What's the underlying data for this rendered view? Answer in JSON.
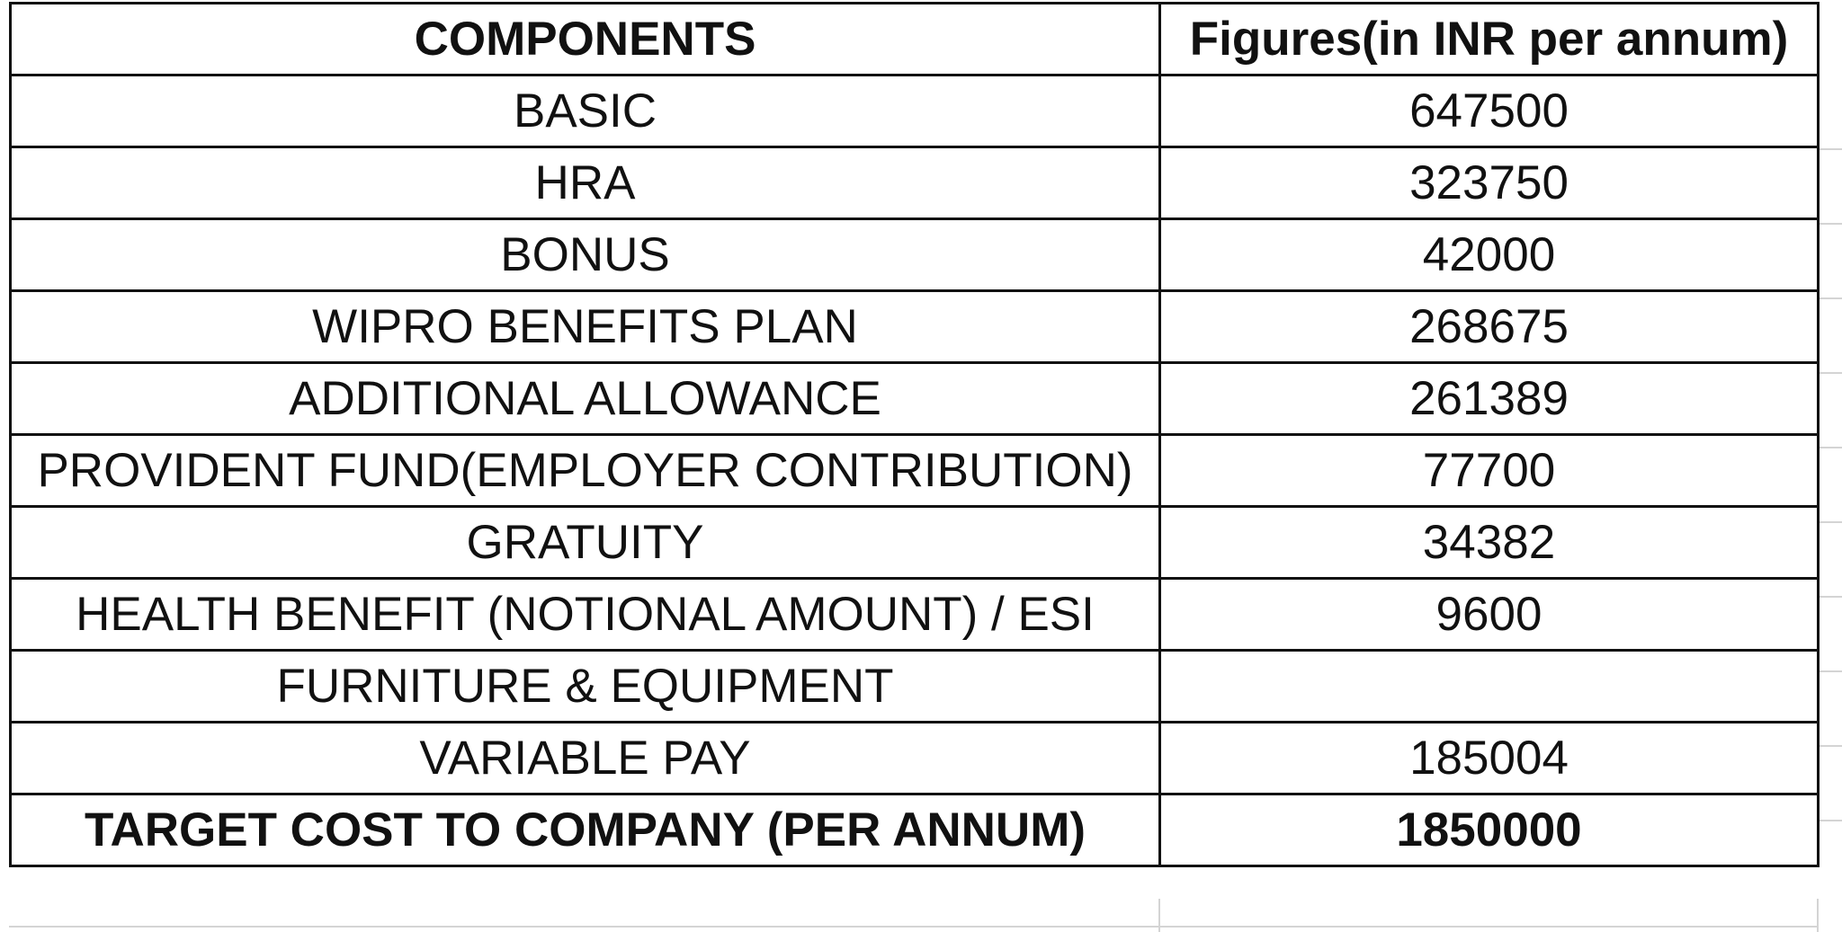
{
  "table": {
    "headers": {
      "components": "COMPONENTS",
      "figures": "Figures(in INR per annum)"
    },
    "rows": [
      {
        "component": "BASIC",
        "figure": "647500"
      },
      {
        "component": "HRA",
        "figure": "323750"
      },
      {
        "component": "BONUS",
        "figure": "42000"
      },
      {
        "component": "WIPRO BENEFITS PLAN",
        "figure": "268675"
      },
      {
        "component": "ADDITIONAL ALLOWANCE",
        "figure": "261389"
      },
      {
        "component": "PROVIDENT FUND(EMPLOYER CONTRIBUTION)",
        "figure": "77700"
      },
      {
        "component": "GRATUITY",
        "figure": "34382"
      },
      {
        "component": "HEALTH BENEFIT (NOTIONAL AMOUNT) / ESI",
        "figure": "9600"
      },
      {
        "component": "FURNITURE & EQUIPMENT",
        "figure": ""
      },
      {
        "component": "VARIABLE PAY",
        "figure": "185004"
      }
    ],
    "total": {
      "component": "TARGET COST TO COMPANY (PER ANNUM)",
      "figure": "1850000"
    }
  },
  "colors": {
    "border": "#111111",
    "gridline": "#d4d4d4",
    "background": "#ffffff"
  }
}
